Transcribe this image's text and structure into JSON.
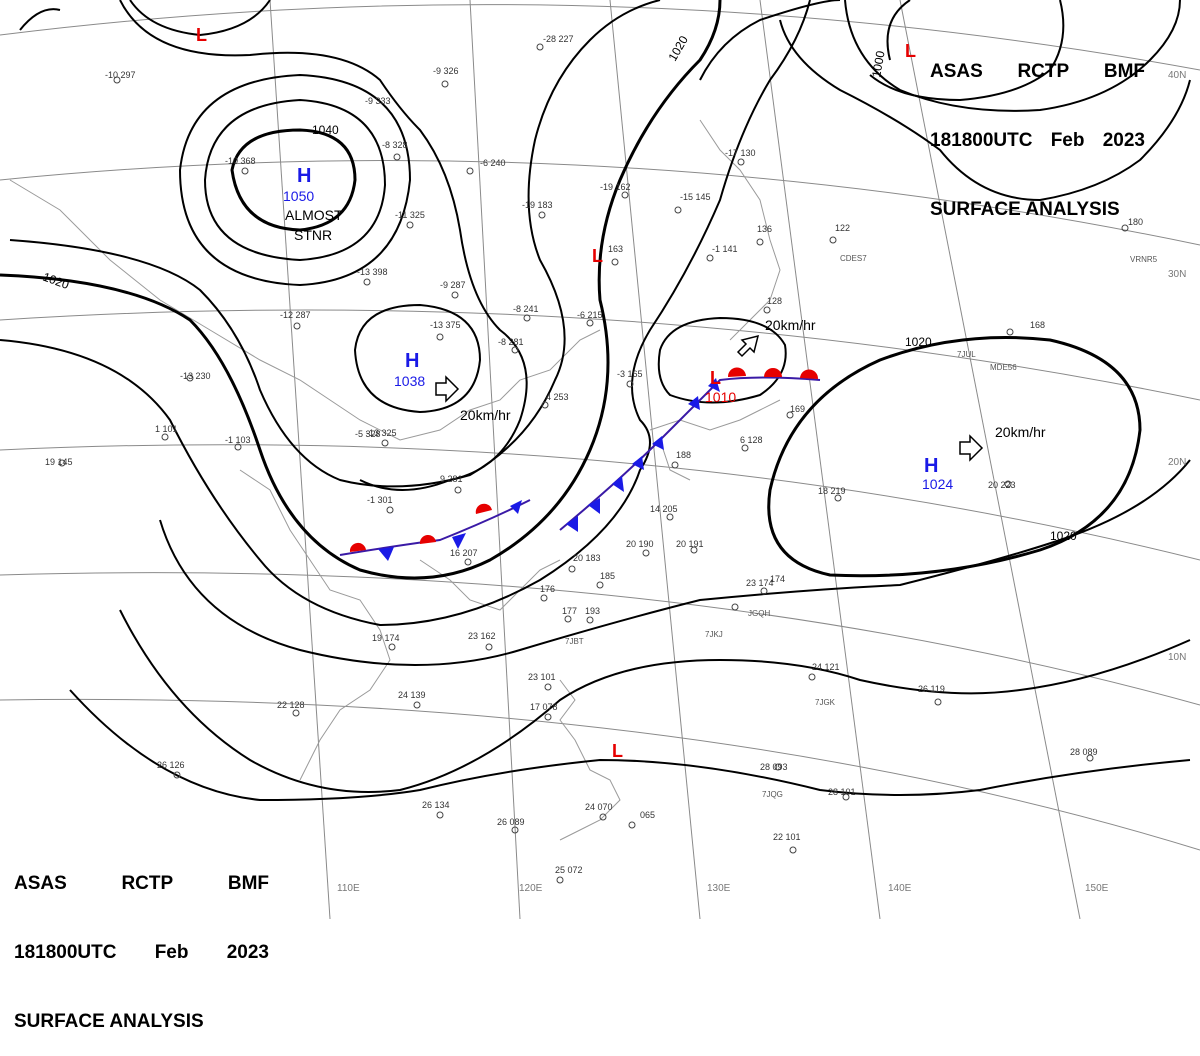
{
  "header": {
    "agency": "ASAS",
    "station": "RCTP",
    "unit": "BMF",
    "datetime": "181800UTC",
    "month": "Feb",
    "year": "2023",
    "product": "SURFACE ANALYSIS"
  },
  "colors": {
    "high": "#1a1ae6",
    "low": "#e60000",
    "cold_front": "#1a1ae6",
    "warm_front": "#e60000",
    "isobar": "#000000",
    "grid": "#8a8a8a",
    "coast": "#9a9a9a"
  },
  "pressure_centers": [
    {
      "type": "H",
      "value": "1050",
      "note1": "ALMOST",
      "note2": "STNR"
    },
    {
      "type": "H",
      "value": "1038",
      "motion": "20km/hr"
    },
    {
      "type": "H",
      "value": "1024",
      "motion": "20km/hr"
    },
    {
      "type": "L",
      "value": "1010",
      "motion": "20km/hr"
    },
    {
      "type": "L"
    },
    {
      "type": "L"
    },
    {
      "type": "L"
    },
    {
      "type": "L"
    }
  ],
  "isobar_labels": [
    "1040",
    "1020",
    "1020",
    "1020",
    "1020",
    "1000"
  ],
  "longitude_labels": [
    "110E",
    "120E",
    "130E",
    "140E",
    "150E"
  ],
  "latitude_labels": [
    "40N",
    "30N",
    "20N",
    "10N"
  ],
  "stations": [
    "-10 297",
    "-28 227",
    "-9 326",
    "-9 333",
    "-8 328",
    "-10 368",
    "-6 240",
    "-11 325",
    "-13 398",
    "-9 287",
    "-13 375",
    "-12 287",
    "-13 230",
    "-8 241",
    "-8 281",
    "-6 215",
    "-19 162",
    "-19 183",
    "-15 145",
    "-17 130",
    "163",
    "-1 141",
    "122",
    "136",
    "-13 325",
    "-5 328",
    "1 101",
    "19 145",
    "-1 103",
    "9 281",
    "-1 301",
    "4 253",
    "16 207",
    "20 183",
    "185",
    "176",
    "177",
    "193",
    "23 162",
    "14 205",
    "20 190",
    "20 191",
    "23 174",
    "174",
    "19 174",
    "24 139",
    "22 128",
    "23 101",
    "17 078",
    "24 121",
    "26 119",
    "26 126",
    "26 134",
    "26 089",
    "24 070",
    "065",
    "25 072",
    "22 101",
    "28 093",
    "28 101",
    "28 089",
    "18 219",
    "20 223",
    "168",
    "169",
    "128",
    "180",
    "188",
    "-3 165",
    "6 128"
  ],
  "ship_ids": [
    "CDES7",
    "VRNR5",
    "7JUL",
    "MDE56",
    "JGQH",
    "7JKJ",
    "7JGK",
    "7JQG",
    "7JBT"
  ]
}
